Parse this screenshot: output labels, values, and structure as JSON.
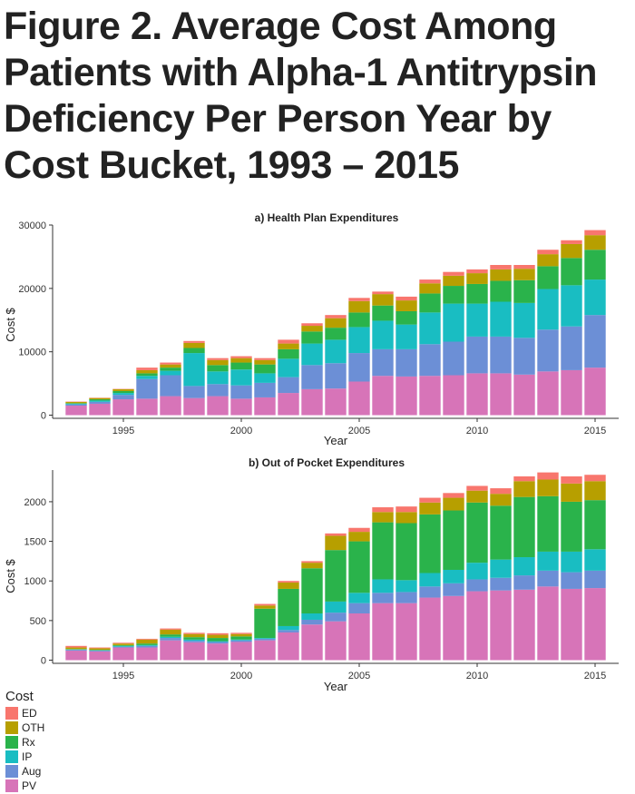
{
  "figure": {
    "title": "Figure 2. Average Cost Among Patients with Alpha-1 Antitrypsin Deficiency Per Person Year by Cost Bucket, 1993 – 2015"
  },
  "legend": {
    "title": "Cost",
    "placement": "bottom-left",
    "items": [
      {
        "key": "ED",
        "color": "#F8766D"
      },
      {
        "key": "OTH",
        "color": "#B79F00"
      },
      {
        "key": "Rx",
        "color": "#2AB34B"
      },
      {
        "key": "IP",
        "color": "#19BDC2"
      },
      {
        "key": "Aug",
        "color": "#6C8FD6"
      },
      {
        "key": "PV",
        "color": "#D774B8"
      }
    ]
  },
  "chart_data": [
    {
      "type": "bar",
      "stacked": true,
      "title": "a) Health Plan Expenditures",
      "xlabel": "Year",
      "ylabel": "Cost $",
      "xlim": [
        1992,
        2016
      ],
      "ylim": [
        -500,
        30000
      ],
      "xticks": [
        1995,
        2000,
        2005,
        2010,
        2015
      ],
      "yticks": [
        0,
        10000,
        20000,
        30000
      ],
      "grid": false,
      "categories": [
        1993,
        1994,
        1995,
        1996,
        1997,
        1998,
        1999,
        2000,
        2001,
        2002,
        2003,
        2004,
        2005,
        2006,
        2007,
        2008,
        2009,
        2010,
        2011,
        2012,
        2013,
        2014,
        2015
      ],
      "series": [
        {
          "name": "PV",
          "values": [
            1500,
            1800,
            2500,
            2600,
            3000,
            2700,
            3000,
            2600,
            2800,
            3500,
            4100,
            4200,
            5300,
            6200,
            6100,
            6200,
            6300,
            6600,
            6600,
            6400,
            6900,
            7100,
            7500
          ]
        },
        {
          "name": "Aug",
          "values": [
            200,
            300,
            700,
            3100,
            3300,
            1900,
            1900,
            2100,
            2300,
            2500,
            3800,
            4000,
            4500,
            4200,
            4300,
            5000,
            5300,
            5800,
            5800,
            5800,
            6600,
            6900,
            8300
          ]
        },
        {
          "name": "IP",
          "values": [
            100,
            200,
            300,
            500,
            700,
            5200,
            2000,
            2500,
            1500,
            2900,
            3400,
            3700,
            4100,
            4500,
            3900,
            5000,
            6000,
            5200,
            5500,
            5500,
            6400,
            6500,
            5600
          ]
        },
        {
          "name": "Rx",
          "values": [
            100,
            200,
            300,
            400,
            500,
            800,
            1000,
            1100,
            1400,
            1500,
            1900,
            1900,
            2300,
            2400,
            2100,
            3000,
            2800,
            3100,
            3300,
            3600,
            3600,
            4300,
            4700
          ]
        },
        {
          "name": "OTH",
          "values": [
            200,
            200,
            300,
            500,
            500,
            800,
            800,
            700,
            700,
            900,
            900,
            1500,
            1800,
            1800,
            1700,
            1600,
            1600,
            1700,
            1800,
            1800,
            1900,
            2200,
            2300
          ]
        },
        {
          "name": "ED",
          "values": [
            50,
            50,
            50,
            400,
            300,
            300,
            300,
            300,
            300,
            600,
            400,
            500,
            500,
            400,
            600,
            600,
            600,
            600,
            700,
            600,
            700,
            600,
            800
          ]
        }
      ]
    },
    {
      "type": "bar",
      "stacked": true,
      "title": "b) Out of Pocket Expenditures",
      "xlabel": "Year",
      "ylabel": "Cost $",
      "xlim": [
        1992,
        2016
      ],
      "ylim": [
        -40,
        2400
      ],
      "xticks": [
        1995,
        2000,
        2005,
        2010,
        2015
      ],
      "yticks": [
        0,
        500,
        1000,
        1500,
        2000
      ],
      "grid": false,
      "categories": [
        1993,
        1994,
        1995,
        1996,
        1997,
        1998,
        1999,
        2000,
        2001,
        2002,
        2003,
        2004,
        2005,
        2006,
        2007,
        2008,
        2009,
        2010,
        2011,
        2012,
        2013,
        2014,
        2015
      ],
      "series": [
        {
          "name": "PV",
          "values": [
            120,
            110,
            160,
            160,
            250,
            225,
            210,
            230,
            250,
            350,
            450,
            490,
            590,
            720,
            720,
            790,
            810,
            870,
            880,
            890,
            930,
            900,
            910
          ]
        },
        {
          "name": "Aug",
          "values": [
            10,
            10,
            10,
            20,
            30,
            20,
            20,
            20,
            20,
            30,
            60,
            110,
            130,
            130,
            140,
            140,
            160,
            150,
            160,
            180,
            200,
            210,
            220
          ]
        },
        {
          "name": "IP",
          "values": [
            5,
            5,
            10,
            10,
            15,
            15,
            10,
            10,
            10,
            50,
            80,
            140,
            130,
            170,
            150,
            170,
            170,
            210,
            230,
            230,
            240,
            260,
            270
          ]
        },
        {
          "name": "Rx",
          "values": [
            5,
            5,
            10,
            20,
            30,
            30,
            40,
            40,
            370,
            470,
            570,
            650,
            650,
            720,
            720,
            740,
            750,
            760,
            680,
            760,
            700,
            630,
            620
          ]
        },
        {
          "name": "OTH",
          "values": [
            20,
            20,
            20,
            50,
            60,
            40,
            40,
            30,
            40,
            80,
            70,
            180,
            120,
            130,
            140,
            150,
            160,
            150,
            150,
            200,
            210,
            230,
            240
          ]
        },
        {
          "name": "ED",
          "values": [
            20,
            10,
            10,
            10,
            15,
            15,
            20,
            15,
            20,
            20,
            20,
            30,
            50,
            60,
            70,
            60,
            60,
            60,
            70,
            60,
            90,
            90,
            80
          ]
        }
      ]
    }
  ]
}
